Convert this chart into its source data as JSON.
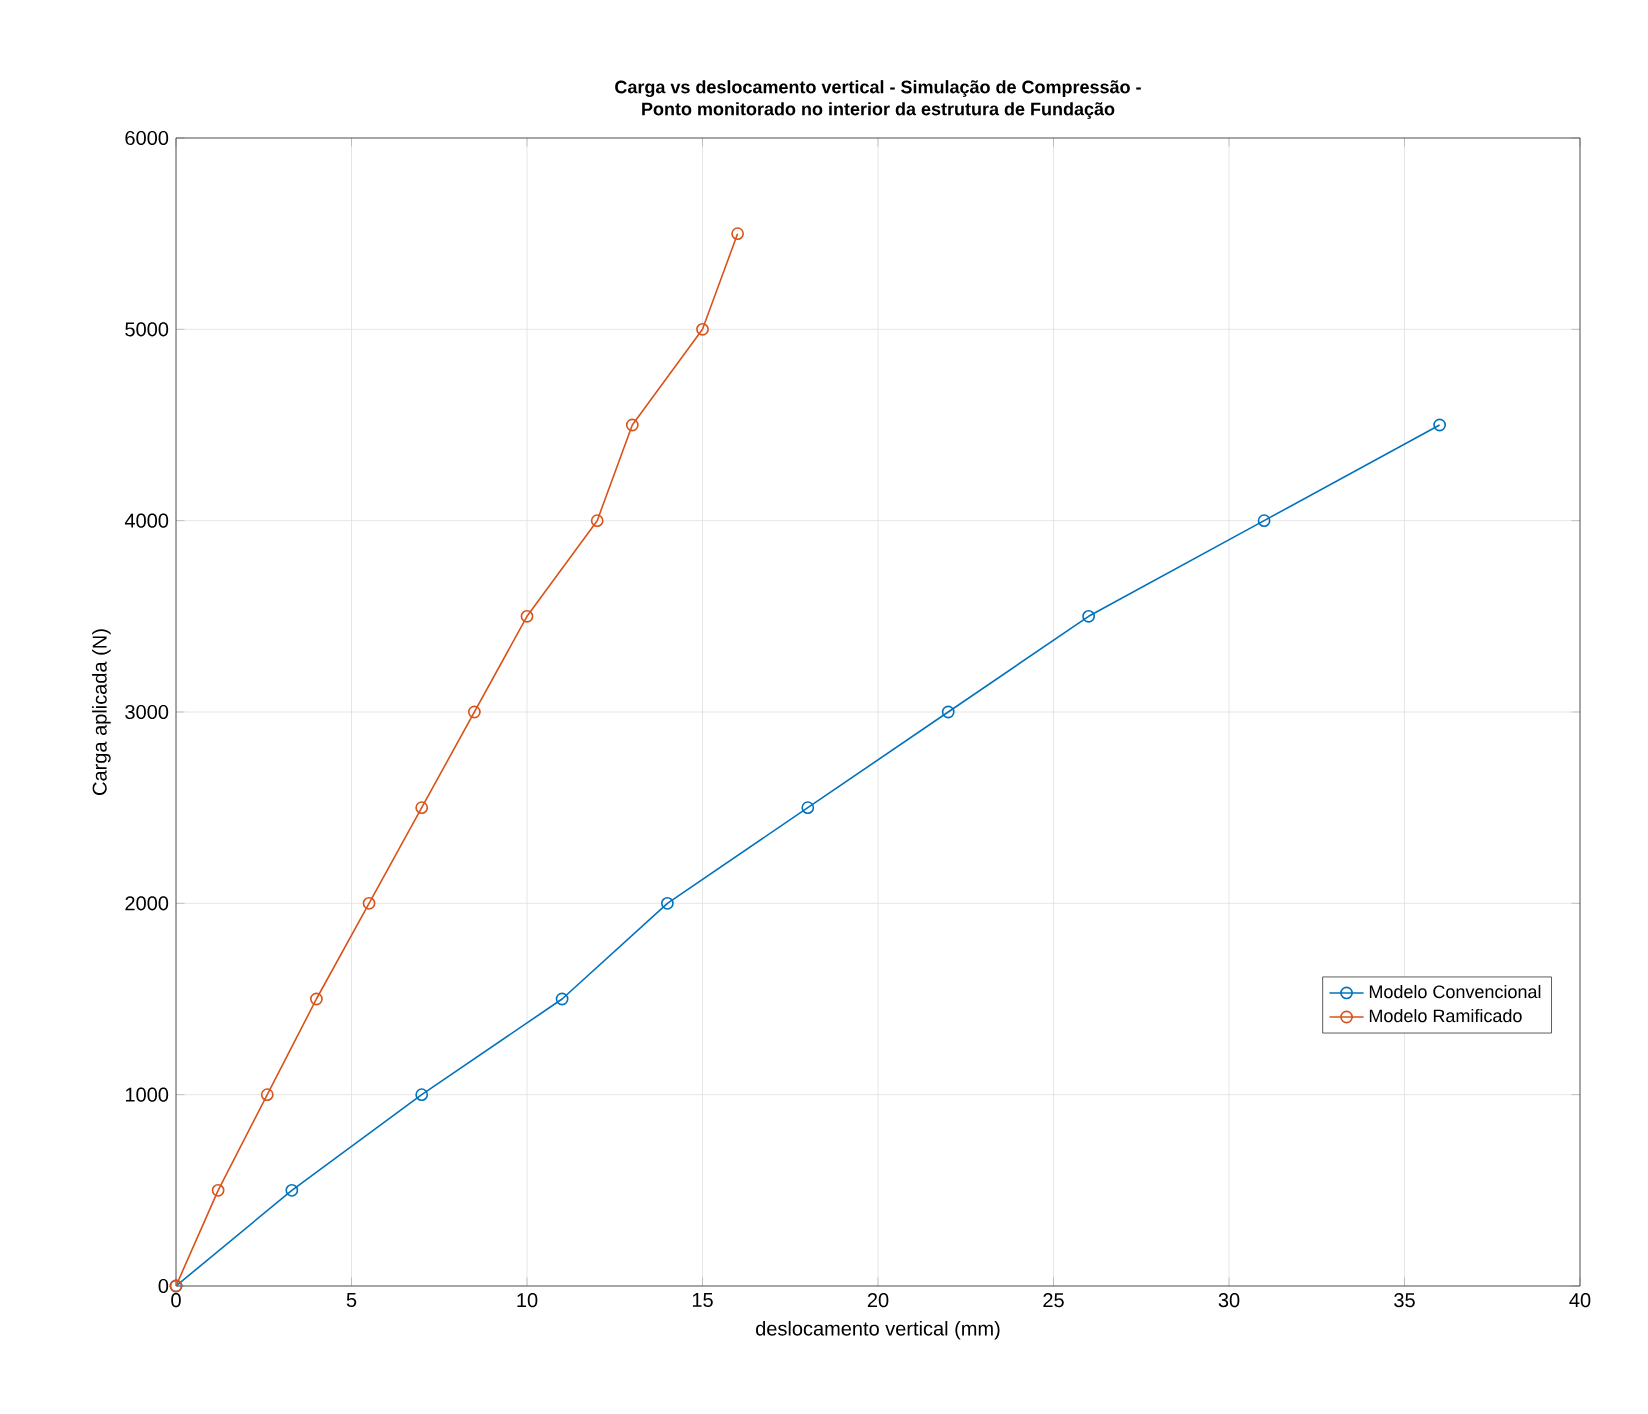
{
  "chart_data": {
    "type": "line",
    "title": "Carga vs deslocamento vertical - Simulação de Compressão -\nPonto monitorado no interior da estrutura de Fundação",
    "xlabel": "deslocamento vertical (mm)",
    "ylabel": "Carga aplicada (N)",
    "series": [
      {
        "name": "Modelo Convencional",
        "color": "#0072bd",
        "x": [
          0,
          3.3,
          7,
          11,
          14,
          18,
          22,
          26,
          31,
          36
        ],
        "values": [
          0,
          500,
          1000,
          1500,
          2000,
          2500,
          3000,
          3500,
          4000,
          4500
        ]
      },
      {
        "name": "Modelo Ramificado",
        "color": "#d95319",
        "x": [
          0,
          1.2,
          2.6,
          4,
          5.5,
          7,
          8.5,
          10,
          12,
          13,
          15,
          16
        ],
        "values": [
          0,
          500,
          1000,
          1500,
          2000,
          2500,
          3000,
          3500,
          4000,
          4500,
          5000,
          5500
        ]
      }
    ],
    "xlim": [
      0,
      40
    ],
    "ylim": [
      0,
      6000
    ],
    "xticks": [
      0,
      5,
      10,
      15,
      20,
      25,
      30,
      35,
      40
    ],
    "yticks": [
      0,
      1000,
      2000,
      3000,
      4000,
      5000,
      6000
    ],
    "grid": true,
    "legend": "bottom right",
    "marker": "circle",
    "line_style": "solid"
  }
}
